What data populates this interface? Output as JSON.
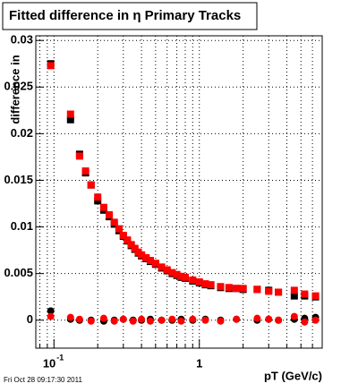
{
  "chart_data": {
    "type": "scatter",
    "title": "Fitted difference in η  Primary Tracks",
    "y_label": "difference in",
    "x_label": "pT (GeV/c)",
    "footer": "Fri Oct 28 09:17:30 2011",
    "log_x": true,
    "grid": true,
    "xlim": [
      0.075,
      7
    ],
    "ylim": [
      -0.003,
      0.0305
    ],
    "xticks": [
      {
        "value": 0.1,
        "label": "10",
        "exponent": "-1"
      },
      1
    ],
    "xminor_ticks": [
      0.08,
      0.09,
      0.2,
      0.3,
      0.4,
      0.5,
      0.6,
      0.7,
      0.8,
      0.9,
      2,
      3,
      4,
      5,
      6
    ],
    "yticks": [
      0,
      0.005,
      0.01,
      0.015,
      0.02,
      0.025,
      0.03
    ],
    "series": [
      {
        "color": "#000000",
        "marker": "square",
        "x": [
          0.095,
          0.13,
          0.15,
          0.165,
          0.18,
          0.2,
          0.22,
          0.24,
          0.26,
          0.28,
          0.3,
          0.32,
          0.34,
          0.36,
          0.38,
          0.4,
          0.43,
          0.46,
          0.5,
          0.55,
          0.6,
          0.65,
          0.7,
          0.75,
          0.8,
          0.9,
          1.0,
          1.1,
          1.2,
          1.4,
          1.6,
          1.8,
          2.0,
          2.5,
          3.0,
          3.5,
          4.5,
          5.3,
          6.3
        ],
        "values": [
          0.0275,
          0.0215,
          0.0178,
          0.0158,
          0.0145,
          0.0128,
          0.0118,
          0.0111,
          0.0103,
          0.0096,
          0.009,
          0.0085,
          0.008,
          0.0076,
          0.0072,
          0.0069,
          0.0066,
          0.0063,
          0.006,
          0.0056,
          0.0053,
          0.005,
          0.0048,
          0.0046,
          0.0045,
          0.0042,
          0.004,
          0.0038,
          0.0037,
          0.0035,
          0.0034,
          0.0034,
          0.0033,
          0.0033,
          0.0032,
          0.003,
          0.0026,
          0.0026,
          0.0025
        ]
      },
      {
        "color": "#ff0000",
        "marker": "square",
        "x": [
          0.095,
          0.13,
          0.15,
          0.165,
          0.18,
          0.2,
          0.22,
          0.24,
          0.26,
          0.28,
          0.3,
          0.32,
          0.34,
          0.36,
          0.38,
          0.4,
          0.43,
          0.46,
          0.5,
          0.55,
          0.6,
          0.65,
          0.7,
          0.75,
          0.8,
          0.9,
          1.0,
          1.1,
          1.2,
          1.4,
          1.6,
          1.8,
          2.0,
          2.5,
          3.0,
          3.5,
          4.5,
          5.3,
          6.3
        ],
        "values": [
          0.0273,
          0.0221,
          0.0176,
          0.016,
          0.0145,
          0.0132,
          0.0121,
          0.0113,
          0.0105,
          0.0098,
          0.0091,
          0.0086,
          0.0081,
          0.0077,
          0.0073,
          0.007,
          0.0067,
          0.0064,
          0.0061,
          0.0057,
          0.0054,
          0.0051,
          0.0049,
          0.0047,
          0.0046,
          0.0043,
          0.0041,
          0.0039,
          0.0038,
          0.0036,
          0.0035,
          0.0034,
          0.0034,
          0.0033,
          0.0031,
          0.003,
          0.0032,
          0.0028,
          0.0026
        ]
      },
      {
        "color": "#000000",
        "marker": "circle",
        "x": [
          0.095,
          0.13,
          0.15,
          0.18,
          0.22,
          0.26,
          0.3,
          0.35,
          0.4,
          0.46,
          0.55,
          0.65,
          0.75,
          0.9,
          1.1,
          1.4,
          1.8,
          2.5,
          3.0,
          3.5,
          4.5,
          5.3,
          6.3
        ],
        "values": [
          0.001,
          0.0001,
          0.0,
          0.0,
          -0.0001,
          0.0,
          0.0001,
          0.0,
          0.0,
          0.0001,
          0.0,
          0.0,
          0.0001,
          0.0,
          0.0001,
          0.0,
          0.0001,
          0.0,
          0.0001,
          0.0,
          0.0001,
          0.0002,
          0.0003
        ]
      },
      {
        "color": "#ff0000",
        "marker": "circle",
        "x": [
          0.095,
          0.13,
          0.15,
          0.18,
          0.22,
          0.26,
          0.3,
          0.35,
          0.4,
          0.46,
          0.55,
          0.65,
          0.75,
          0.9,
          1.1,
          1.4,
          1.8,
          2.5,
          3.0,
          3.5,
          4.5,
          5.3,
          6.3
        ],
        "values": [
          0.0004,
          0.0003,
          0.0001,
          -0.0001,
          0.0002,
          -0.0001,
          0.0001,
          -0.0001,
          0.0001,
          -0.0001,
          0.0,
          0.0001,
          -0.0001,
          0.0001,
          0.0,
          -0.0001,
          0.0001,
          0.0002,
          0.0001,
          0.0,
          0.0004,
          -0.0002,
          0.0
        ]
      }
    ]
  }
}
